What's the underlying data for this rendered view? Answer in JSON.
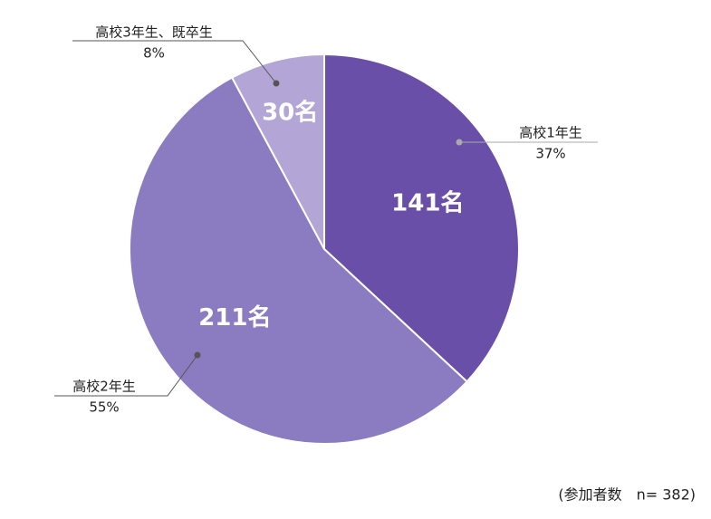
{
  "chart_data": {
    "type": "pie",
    "categories": [
      "高校1年生",
      "高校2年生",
      "高校3年生、既卒生"
    ],
    "values": [
      141,
      211,
      30
    ],
    "value_labels": [
      "141名",
      "211名",
      "30名"
    ],
    "percent_labels": [
      "37%",
      "55%",
      "8%"
    ],
    "colors": [
      "#6a4fa8",
      "#8b7bc0",
      "#b3a6d6"
    ],
    "note": "(参加者数　n= 382)"
  }
}
